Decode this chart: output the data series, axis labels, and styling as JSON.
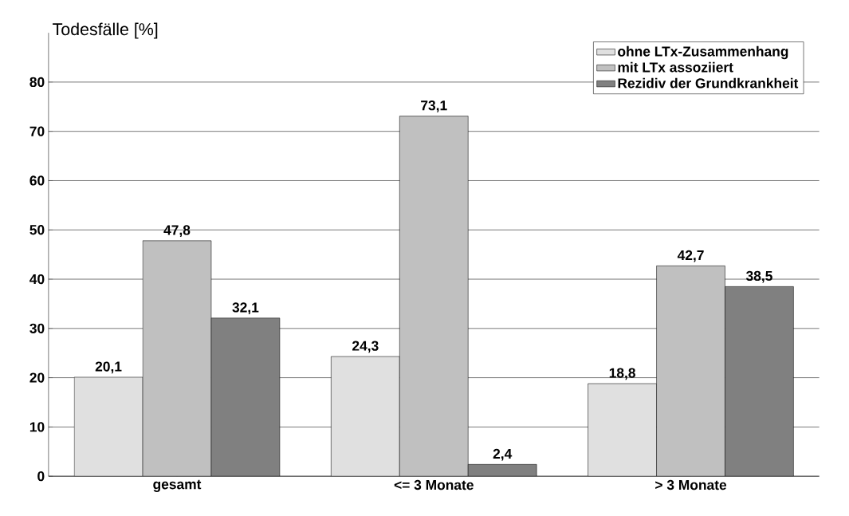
{
  "chart_data": {
    "type": "bar",
    "ylabel": "Todesfälle [%]",
    "categories": [
      "gesamt",
      "<= 3 Monate",
      "> 3 Monate"
    ],
    "series": [
      {
        "name": "ohne LTx-Zusammenhang",
        "color": "#e0e0e0",
        "values": [
          20.1,
          24.3,
          18.8
        ],
        "value_labels": [
          "20,1",
          "24,3",
          "18,8"
        ]
      },
      {
        "name": "mit LTx assoziiert",
        "color": "#c0c0c0",
        "values": [
          47.8,
          73.1,
          42.7
        ],
        "value_labels": [
          "47,8",
          "73,1",
          "42,7"
        ]
      },
      {
        "name": "Rezidiv der Grundkrankheit",
        "color": "#808080",
        "values": [
          32.1,
          2.4,
          38.5
        ],
        "value_labels": [
          "32,1",
          "2,4",
          "38,5"
        ]
      }
    ],
    "ylim": [
      0,
      90
    ],
    "yticks": [
      0,
      10,
      20,
      30,
      40,
      50,
      60,
      70,
      80
    ],
    "grid": "y",
    "legend": "top right"
  }
}
